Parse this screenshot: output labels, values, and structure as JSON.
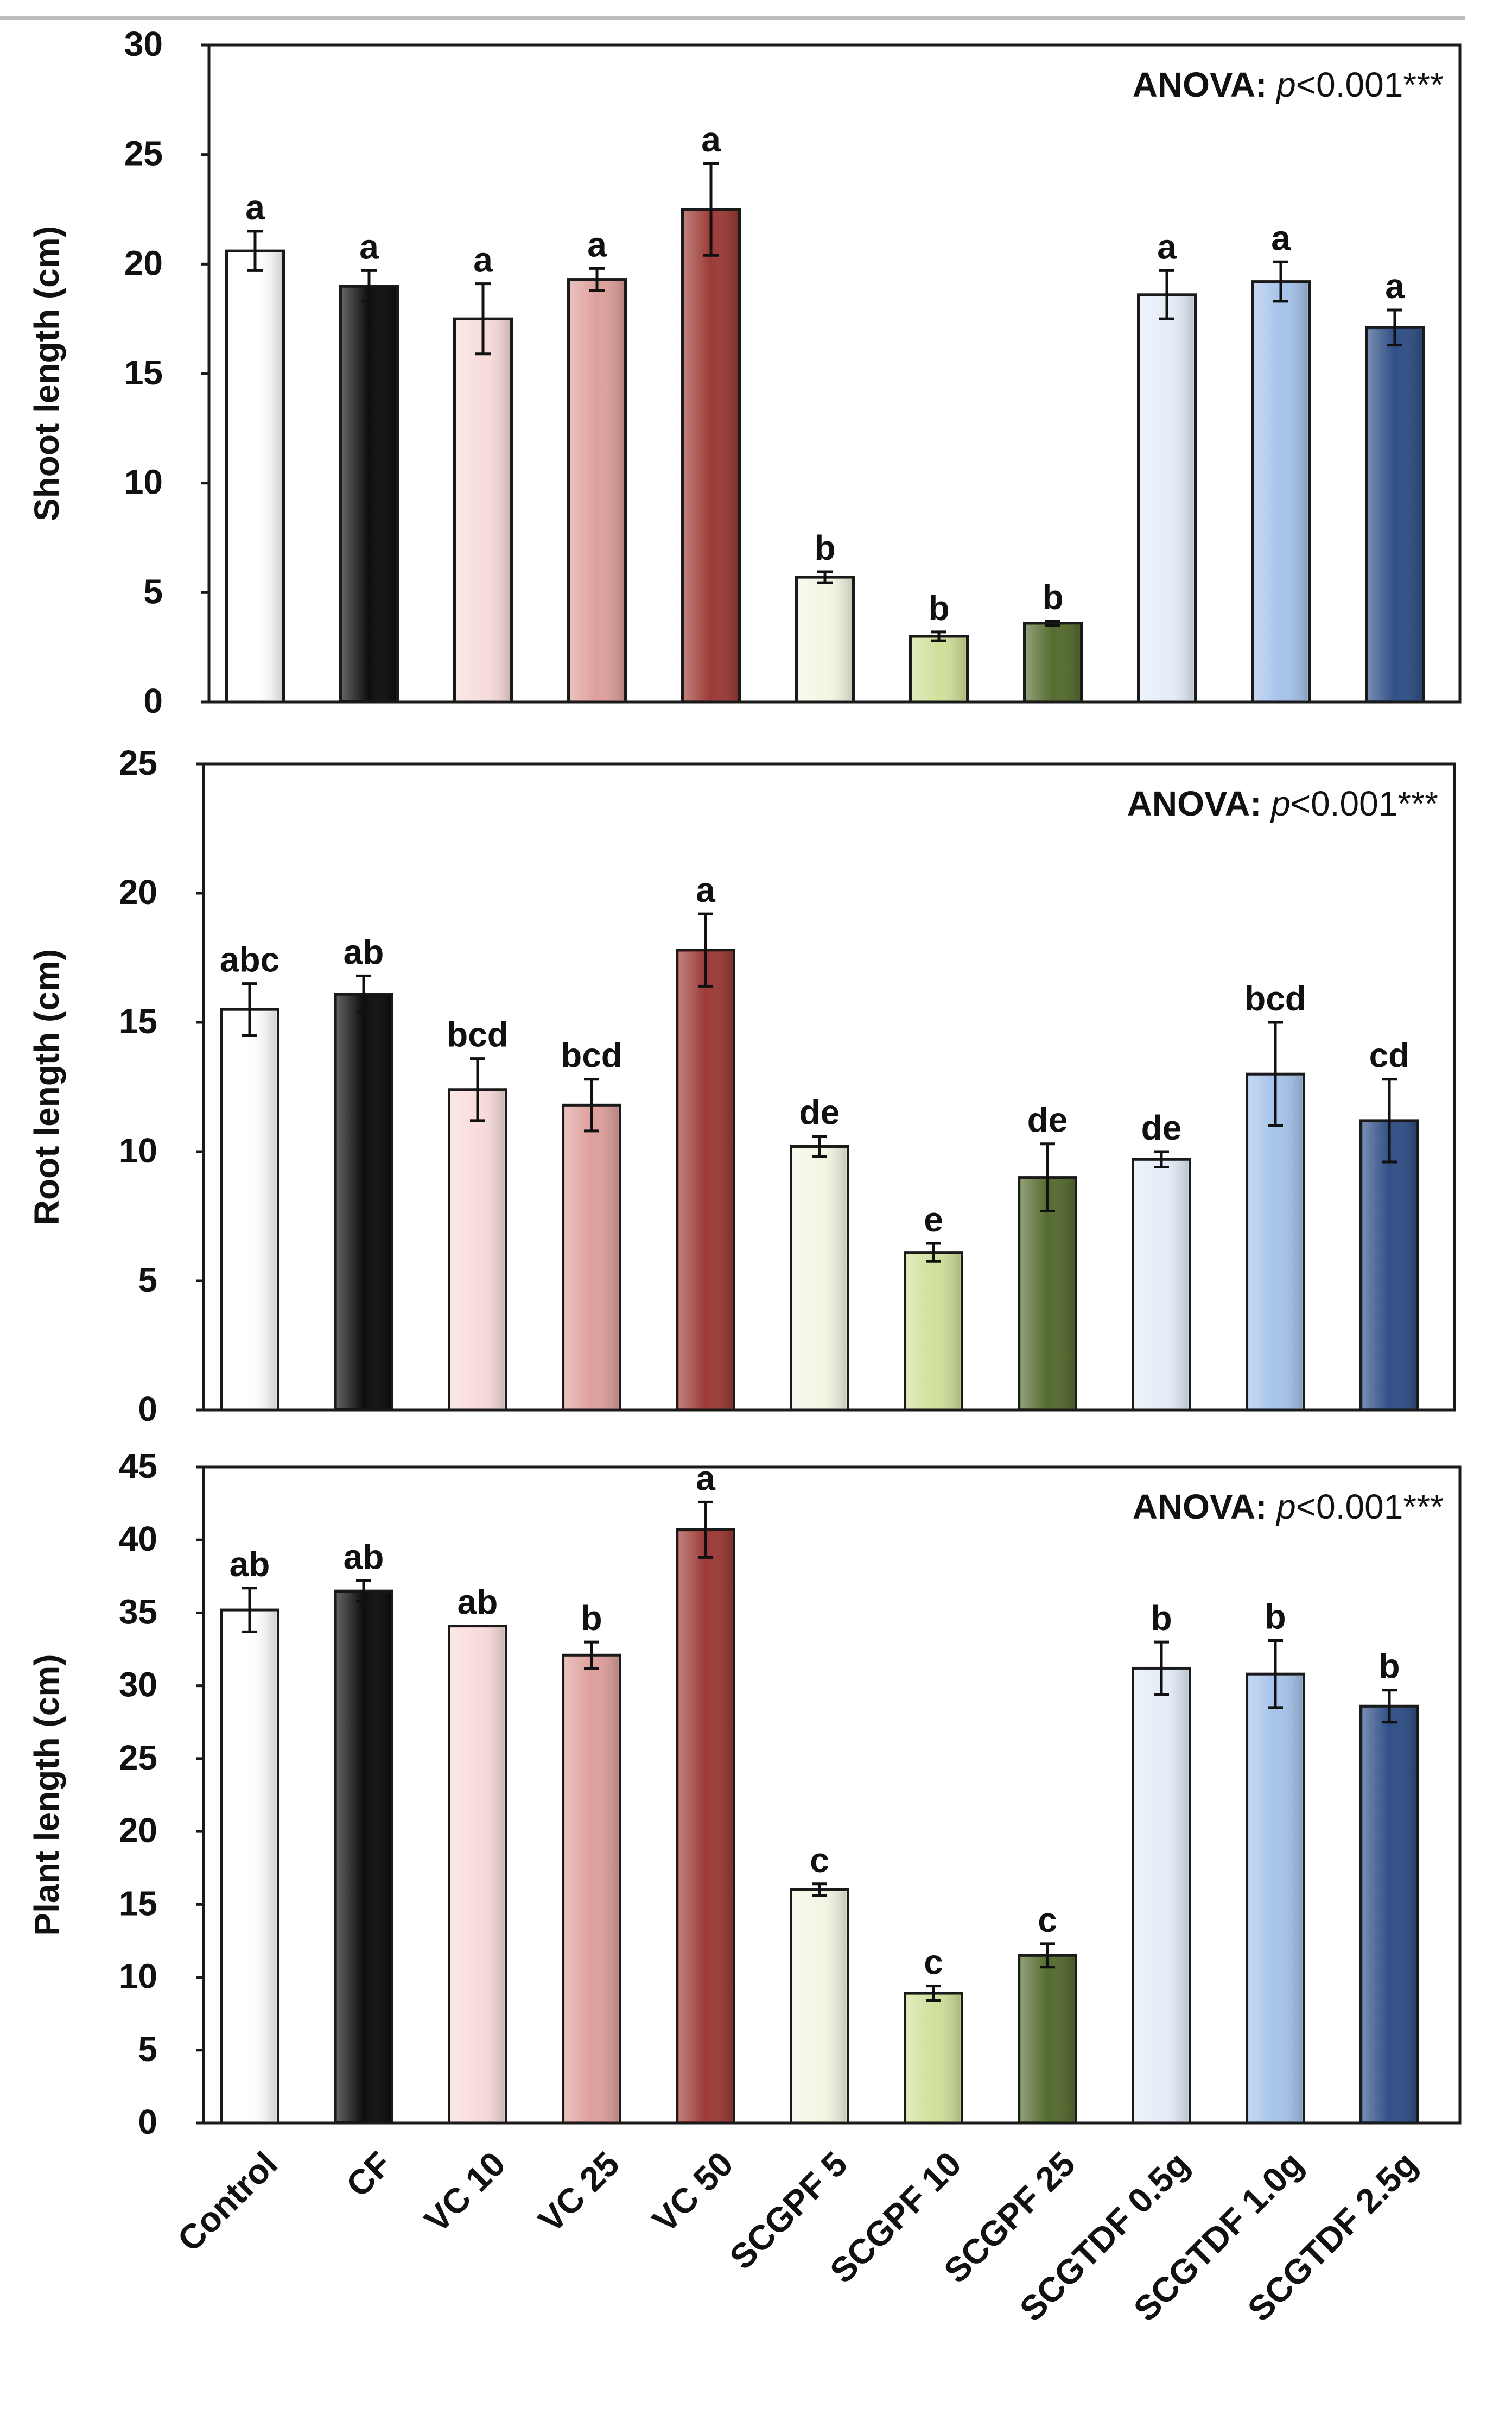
{
  "chart_data": [
    {
      "type": "bar",
      "ylabel": "Shoot length (cm)",
      "ylim": [
        0,
        30
      ],
      "yticks": [
        0,
        5,
        10,
        15,
        20,
        25,
        30
      ],
      "annotation": {
        "prefix": "ANOVA: ",
        "p": "p",
        "rest": "<0.001***"
      },
      "categories": [
        "Control",
        "CF",
        "VC 10",
        "VC 25",
        "VC 50",
        "SCGPF 5",
        "SCGPF 10",
        "SCGPF 25",
        "SCGTDF 0.5g",
        "SCGTDF 1.0g",
        "SCGTDF 2.5g"
      ],
      "values": [
        20.6,
        19.0,
        17.5,
        19.3,
        22.5,
        5.7,
        3.0,
        3.6,
        18.6,
        19.2,
        17.1
      ],
      "errors": [
        0.9,
        0.7,
        1.6,
        0.5,
        2.1,
        0.25,
        0.2,
        0.1,
        1.1,
        0.9,
        0.8
      ],
      "letters": [
        "a",
        "a",
        "a",
        "a",
        "a",
        "b",
        "b",
        "b",
        "a",
        "a",
        "a"
      ]
    },
    {
      "type": "bar",
      "ylabel": "Root length (cm)",
      "ylim": [
        0,
        25
      ],
      "yticks": [
        0,
        5,
        10,
        15,
        20,
        25
      ],
      "annotation": {
        "prefix": "ANOVA: ",
        "p": "p",
        "rest": "<0.001***"
      },
      "categories": [
        "Control",
        "CF",
        "VC 10",
        "VC 25",
        "VC 50",
        "SCGPF 5",
        "SCGPF 10",
        "SCGPF 25",
        "SCGTDF 0.5g",
        "SCGTDF 1.0g",
        "SCGTDF 2.5g"
      ],
      "values": [
        15.5,
        16.1,
        12.4,
        11.8,
        17.8,
        10.2,
        6.1,
        9.0,
        9.7,
        13.0,
        11.2
      ],
      "errors": [
        1.0,
        0.7,
        1.2,
        1.0,
        1.4,
        0.4,
        0.35,
        1.3,
        0.3,
        2.0,
        1.6
      ],
      "letters": [
        "abc",
        "ab",
        "bcd",
        "bcd",
        "a",
        "de",
        "e",
        "de",
        "de",
        "bcd",
        "cd"
      ]
    },
    {
      "type": "bar",
      "ylabel": "Plant length (cm)",
      "ylim": [
        0,
        45
      ],
      "yticks": [
        0,
        5,
        10,
        15,
        20,
        25,
        30,
        35,
        40,
        45
      ],
      "annotation": {
        "prefix": "ANOVA: ",
        "p": "p",
        "rest": "<0.001***"
      },
      "categories": [
        "Control",
        "CF",
        "VC 10",
        "VC 25",
        "VC 50",
        "SCGPF 5",
        "SCGPF 10",
        "SCGPF 25",
        "SCGTDF 0.5g",
        "SCGTDF 1.0g",
        "SCGTDF 2.5g"
      ],
      "values": [
        35.2,
        36.5,
        34.1,
        32.1,
        40.7,
        16.0,
        8.9,
        11.5,
        31.2,
        30.8,
        28.6
      ],
      "errors": [
        1.5,
        0.7,
        0.0,
        0.9,
        1.9,
        0.4,
        0.5,
        0.8,
        1.8,
        2.3,
        1.1
      ],
      "letters": [
        "ab",
        "ab",
        "ab",
        "b",
        "a",
        "c",
        "c",
        "c",
        "b",
        "b",
        "b"
      ]
    }
  ],
  "bar_colors": [
    "#ffffff",
    "#0d0d0d",
    "#f8dcdb",
    "#dea09c",
    "#9c3a36",
    "#f3f6e3",
    "#cfe09a",
    "#556b2f",
    "#e5edf8",
    "#a6c3ea",
    "#2f4f86"
  ]
}
